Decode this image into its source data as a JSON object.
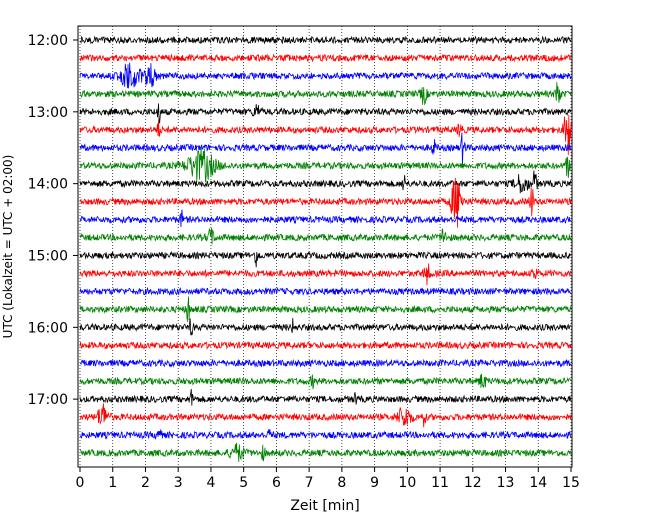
{
  "chart_data": {
    "type": "line",
    "title": "",
    "xlabel": "Zeit  [min]",
    "ylabel": "UTC (Lokalzeit = UTC + 02:00)",
    "xlim": [
      0,
      15
    ],
    "x_ticks": [
      "0",
      "1",
      "2",
      "3",
      "4",
      "5",
      "6",
      "7",
      "8",
      "9",
      "10",
      "11",
      "12",
      "13",
      "14",
      "15"
    ],
    "y_ticks": [
      "12:00",
      "13:00",
      "14:00",
      "15:00",
      "16:00",
      "17:00"
    ],
    "trace_start": "12:00",
    "trace_end": "17:45",
    "trace_interval_min": 15,
    "grid": "vertical-dotted",
    "colors": [
      "#000000",
      "#ff0000",
      "#0000ff",
      "#008000"
    ],
    "events": [
      {
        "trace": 2,
        "x": 1.5,
        "amp": 1.1,
        "w": 0.25
      },
      {
        "trace": 2,
        "x": 2.1,
        "amp": 1.0,
        "w": 0.2
      },
      {
        "trace": 3,
        "x": 10.5,
        "amp": 0.9,
        "w": 0.08
      },
      {
        "trace": 3,
        "x": 14.6,
        "amp": 1.6,
        "w": 0.06
      },
      {
        "trace": 4,
        "x": 2.4,
        "amp": 1.2,
        "w": 0.05
      },
      {
        "trace": 4,
        "x": 5.4,
        "amp": 0.6,
        "w": 0.1
      },
      {
        "trace": 5,
        "x": 2.4,
        "amp": 0.8,
        "w": 0.05
      },
      {
        "trace": 5,
        "x": 11.6,
        "amp": 1.0,
        "w": 0.05
      },
      {
        "trace": 5,
        "x": 14.9,
        "amp": 2.6,
        "w": 0.1
      },
      {
        "trace": 6,
        "x": 11.7,
        "amp": 1.5,
        "w": 0.06
      },
      {
        "trace": 6,
        "x": 10.8,
        "amp": 0.8,
        "w": 0.05
      },
      {
        "trace": 7,
        "x": 3.7,
        "amp": 1.4,
        "w": 0.4
      },
      {
        "trace": 7,
        "x": 14.9,
        "amp": 1.2,
        "w": 0.05
      },
      {
        "trace": 8,
        "x": 9.9,
        "amp": 0.8,
        "w": 0.05
      },
      {
        "trace": 8,
        "x": 13.9,
        "amp": 1.4,
        "w": 0.05
      },
      {
        "trace": 8,
        "x": 13.5,
        "amp": 0.8,
        "w": 0.2
      },
      {
        "trace": 9,
        "x": 11.5,
        "amp": 2.4,
        "w": 0.15
      },
      {
        "trace": 9,
        "x": 13.8,
        "amp": 1.4,
        "w": 0.06
      },
      {
        "trace": 10,
        "x": 3.1,
        "amp": 0.7,
        "w": 0.05
      },
      {
        "trace": 11,
        "x": 4.0,
        "amp": 0.7,
        "w": 0.1
      },
      {
        "trace": 11,
        "x": 11.1,
        "amp": 1.0,
        "w": 0.06
      },
      {
        "trace": 12,
        "x": 5.4,
        "amp": 1.2,
        "w": 0.05
      },
      {
        "trace": 13,
        "x": 10.6,
        "amp": 0.8,
        "w": 0.1
      },
      {
        "trace": 13,
        "x": 13.9,
        "amp": 0.8,
        "w": 0.05
      },
      {
        "trace": 15,
        "x": 3.3,
        "amp": 1.3,
        "w": 0.05
      },
      {
        "trace": 16,
        "x": 3.4,
        "amp": 1.1,
        "w": 0.04
      },
      {
        "trace": 16,
        "x": 6.5,
        "amp": 0.6,
        "w": 0.04
      },
      {
        "trace": 19,
        "x": 7.1,
        "amp": 0.5,
        "w": 0.05
      },
      {
        "trace": 19,
        "x": 12.3,
        "amp": 0.6,
        "w": 0.1
      },
      {
        "trace": 20,
        "x": 3.4,
        "amp": 0.7,
        "w": 0.05
      },
      {
        "trace": 20,
        "x": 8.4,
        "amp": 0.5,
        "w": 0.05
      },
      {
        "trace": 21,
        "x": 0.7,
        "amp": 1.1,
        "w": 0.15
      },
      {
        "trace": 21,
        "x": 9.9,
        "amp": 0.9,
        "w": 0.2
      },
      {
        "trace": 21,
        "x": 10.5,
        "amp": 0.8,
        "w": 0.05
      },
      {
        "trace": 22,
        "x": 2.4,
        "amp": 1.0,
        "w": 0.06
      },
      {
        "trace": 22,
        "x": 5.8,
        "amp": 0.6,
        "w": 0.05
      },
      {
        "trace": 23,
        "x": 4.8,
        "amp": 0.7,
        "w": 0.2
      },
      {
        "trace": 23,
        "x": 5.6,
        "amp": 0.6,
        "w": 0.05
      }
    ]
  }
}
